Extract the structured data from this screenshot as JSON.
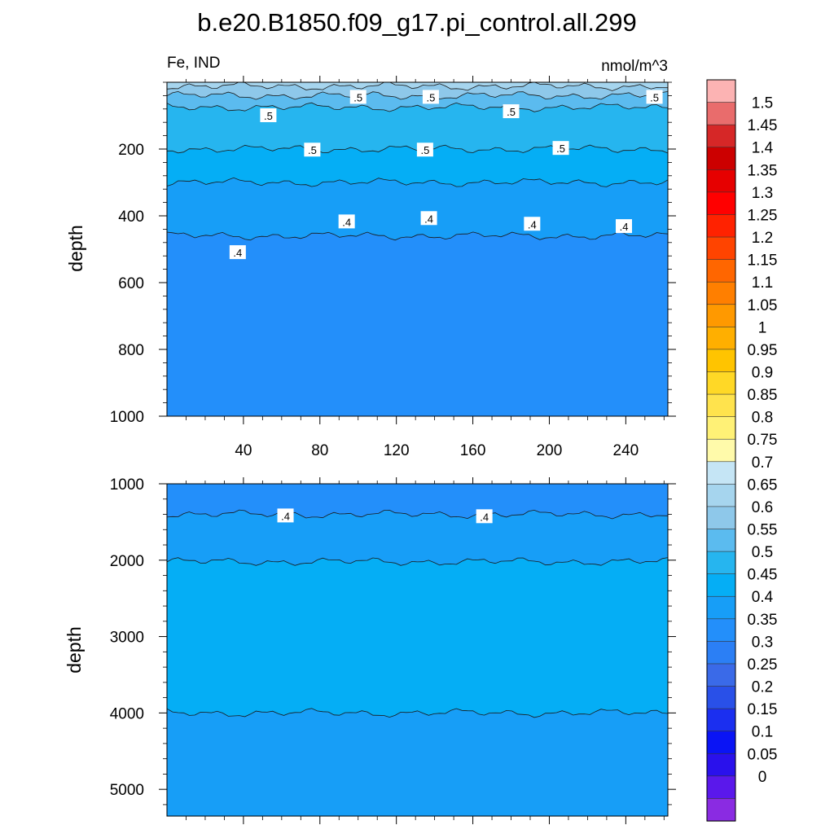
{
  "chart_data": [
    {
      "type": "heatmap",
      "title": "b.e20.B1850.f09_g17.pi_control.all.299",
      "left_string": "Fe, IND",
      "right_string": "nmol/m^3",
      "ylabel": "depth",
      "xlim": [
        0,
        262
      ],
      "ylim": [
        1000,
        0
      ],
      "x_ticks": [
        40,
        80,
        120,
        160,
        200,
        240
      ],
      "y_ticks": [
        200,
        400,
        600,
        800,
        1000
      ],
      "bands": [
        {
          "from_depth": 0,
          "to_depth": 12,
          "value": 0.65,
          "color": "#a6d5ee"
        },
        {
          "from_depth": 12,
          "to_depth": 40,
          "value": 0.6,
          "color": "#8ec8ea"
        },
        {
          "from_depth": 40,
          "to_depth": 75,
          "value": 0.55,
          "color": "#5bbbef"
        },
        {
          "from_depth": 75,
          "to_depth": 200,
          "value": 0.5,
          "color": "#26b5ef"
        },
        {
          "from_depth": 200,
          "to_depth": 300,
          "value": 0.45,
          "color": "#05aef5"
        },
        {
          "from_depth": 300,
          "to_depth": 460,
          "value": 0.4,
          "color": "#179ef7"
        },
        {
          "from_depth": 460,
          "to_depth": 1000,
          "value": 0.35,
          "color": "#238ffa"
        }
      ],
      "contour_labels": [
        {
          "x": 100,
          "depth": 45,
          "text": ".5"
        },
        {
          "x": 138,
          "depth": 45,
          "text": ".5"
        },
        {
          "x": 255,
          "depth": 45,
          "text": ".5"
        },
        {
          "x": 53,
          "depth": 100,
          "text": ".5"
        },
        {
          "x": 180,
          "depth": 88,
          "text": ".5"
        },
        {
          "x": 76,
          "depth": 203,
          "text": ".5"
        },
        {
          "x": 135,
          "depth": 203,
          "text": ".5"
        },
        {
          "x": 206,
          "depth": 198,
          "text": ".5"
        },
        {
          "x": 94,
          "depth": 418,
          "text": ".4"
        },
        {
          "x": 137,
          "depth": 408,
          "text": ".4"
        },
        {
          "x": 191,
          "depth": 425,
          "text": ".4"
        },
        {
          "x": 239,
          "depth": 432,
          "text": ".4"
        },
        {
          "x": 37,
          "depth": 510,
          "text": ".4"
        }
      ]
    },
    {
      "type": "heatmap",
      "ylabel": "depth",
      "xlim": [
        0,
        262
      ],
      "ylim": [
        5350,
        1000
      ],
      "x_ticks": [
        40,
        80,
        120,
        160,
        200,
        240
      ],
      "y_ticks": [
        1000,
        2000,
        3000,
        4000,
        5000
      ],
      "bands": [
        {
          "from_depth": 1000,
          "to_depth": 1400,
          "value": 0.35,
          "color": "#238ffa"
        },
        {
          "from_depth": 1400,
          "to_depth": 2020,
          "value": 0.4,
          "color": "#179ef7"
        },
        {
          "from_depth": 2020,
          "to_depth": 4000,
          "value": 0.45,
          "color": "#05aef5"
        },
        {
          "from_depth": 4000,
          "to_depth": 5350,
          "value": 0.4,
          "color": "#179ef7"
        }
      ],
      "contour_labels": [
        {
          "x": 62,
          "depth": 1420,
          "text": ".4"
        },
        {
          "x": 166,
          "depth": 1430,
          "text": ".4"
        }
      ]
    }
  ],
  "colorbar": {
    "labels": [
      "1.5",
      "1.45",
      "1.4",
      "1.35",
      "1.3",
      "1.25",
      "1.2",
      "1.15",
      "1.1",
      "1.05",
      "1",
      "0.95",
      "0.9",
      "0.85",
      "0.8",
      "0.75",
      "0.7",
      "0.65",
      "0.6",
      "0.55",
      "0.5",
      "0.45",
      "0.4",
      "0.35",
      "0.3",
      "0.25",
      "0.2",
      "0.15",
      "0.1",
      "0.05",
      "0"
    ],
    "colors": [
      "#fcb3b3",
      "#e96c6c",
      "#d62727",
      "#cc0000",
      "#e60000",
      "#ff0000",
      "#ff2200",
      "#ff4400",
      "#ff6600",
      "#ff7f00",
      "#ff9900",
      "#ffaf00",
      "#ffc400",
      "#ffd826",
      "#ffe34d",
      "#fff176",
      "#fffaaa",
      "#c5e5f5",
      "#a6d5ee",
      "#8ec8ea",
      "#5bbbef",
      "#26b5ef",
      "#05aef5",
      "#179ef7",
      "#238ffa",
      "#2b7ff5",
      "#3a6ae8",
      "#2950e8",
      "#1b2ff0",
      "#0a14f5",
      "#2a11ec",
      "#5a18eb",
      "#8a2be2"
    ]
  }
}
